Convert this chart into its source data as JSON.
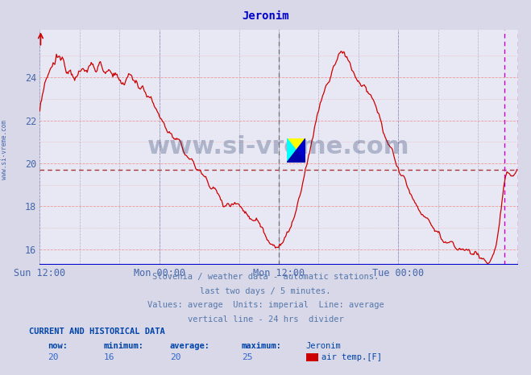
{
  "title": "Jeronim",
  "title_color": "#0000cc",
  "bg_color": "#d8d8e8",
  "plot_bg_color": "#e8e8f4",
  "grid_color_h": "#ee9999",
  "grid_color_v": "#9999bb",
  "line_color": "#cc0000",
  "avg_line_color": "#cc0000",
  "avg_line_value": 19.7,
  "vline_24h_color": "#888888",
  "vline_now_color": "#cc00cc",
  "xlabel_color": "#4466aa",
  "ylabel_color": "#4466aa",
  "yticks": [
    16,
    18,
    20,
    22,
    24
  ],
  "ylim": [
    15.3,
    26.2
  ],
  "xlim": [
    0,
    576
  ],
  "xtick_positions": [
    0,
    144,
    288,
    432
  ],
  "xtick_labels": [
    "Sun 12:00",
    "Mon 00:00",
    "Mon 12:00",
    "Tue 00:00"
  ],
  "vline_24h_x": 288,
  "vline_now_x": 560,
  "footnote_lines": [
    "Slovenia / weather data - automatic stations.",
    "last two days / 5 minutes.",
    "Values: average  Units: imperial  Line: average",
    "vertical line - 24 hrs  divider"
  ],
  "footnote_color": "#5577aa",
  "current_label": "CURRENT AND HISTORICAL DATA",
  "current_color": "#0044aa",
  "stats_labels": [
    "now:",
    "minimum:",
    "average:",
    "maximum:",
    "Jeronim"
  ],
  "stats_values": [
    "20",
    "16",
    "20",
    "25"
  ],
  "stats_label_color": "#0044aa",
  "stats_value_color": "#3366cc",
  "legend_label": "air temp.[F]",
  "legend_color": "#cc0000",
  "watermark": "www.si-vreme.com",
  "watermark_color": "#1a3060",
  "watermark_alpha": 0.28,
  "sidebar_text": "www.si-vreme.com",
  "sidebar_color": "#4466aa",
  "blue_bottom_line": "#0000cc",
  "arrow_color": "#cc0000"
}
